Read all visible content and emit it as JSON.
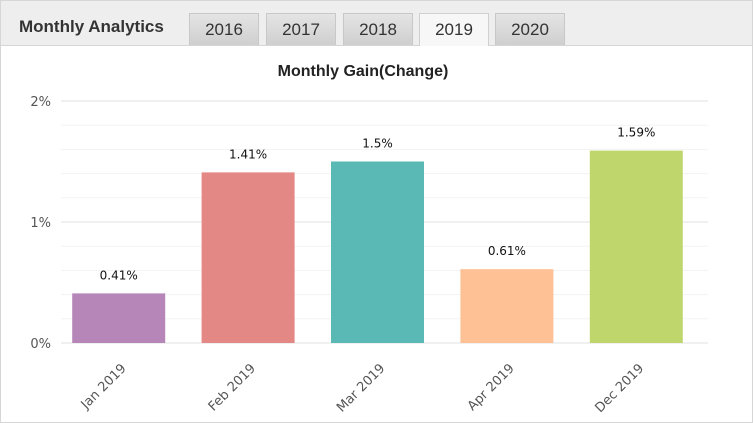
{
  "header": {
    "title": "Monthly Analytics",
    "tabs": [
      {
        "label": "2016",
        "active": false
      },
      {
        "label": "2017",
        "active": false
      },
      {
        "label": "2018",
        "active": false
      },
      {
        "label": "2019",
        "active": true
      },
      {
        "label": "2020",
        "active": false
      }
    ]
  },
  "chart_data": {
    "type": "bar",
    "title": "Monthly Gain(Change)",
    "xlabel": "",
    "ylabel": "",
    "categories": [
      "Jan 2019",
      "Feb 2019",
      "Mar 2019",
      "Apr 2019",
      "Dec 2019"
    ],
    "values": [
      0.41,
      1.41,
      1.5,
      0.61,
      1.59
    ],
    "data_labels": [
      "0.41%",
      "1.41%",
      "1.5%",
      "0.61%",
      "1.59%"
    ],
    "colors": [
      "#b586b7",
      "#e48886",
      "#5ab8b5",
      "#fec095",
      "#bed66c"
    ],
    "ylim": [
      0,
      2
    ],
    "yticks": [
      0,
      1,
      2
    ],
    "ytick_labels": [
      "0%",
      "1%",
      "2%"
    ],
    "grid": true,
    "legend": "none"
  }
}
